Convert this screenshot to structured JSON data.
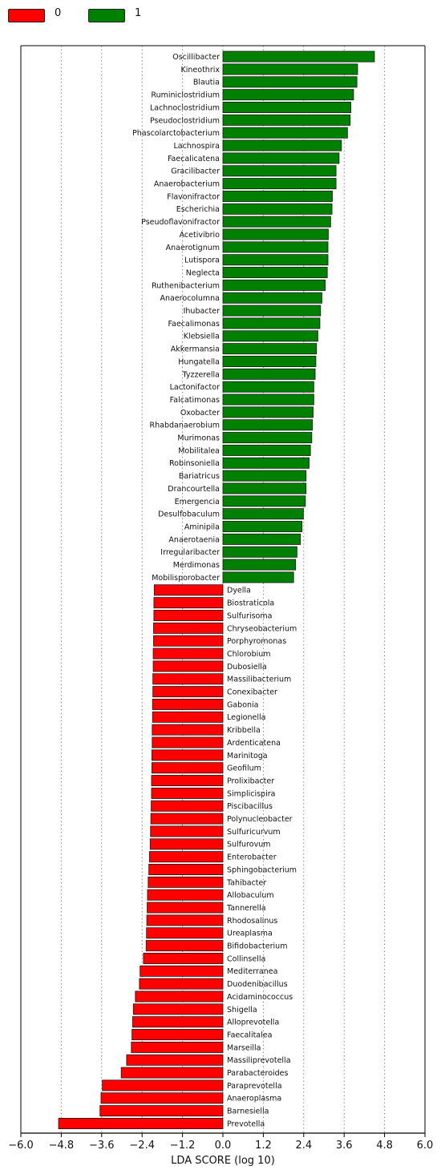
{
  "legend": [
    {
      "label": "0",
      "color": "#ff0000"
    },
    {
      "label": "1",
      "color": "#008000"
    }
  ],
  "chart_data": {
    "type": "bar",
    "orientation": "horizontal",
    "title": "",
    "xlabel": "LDA SCORE (log 10)",
    "ylabel": "",
    "xlim": [
      -6.0,
      6.0
    ],
    "xticks": [
      -6.0,
      -4.8,
      -3.6,
      -2.4,
      -1.2,
      0.0,
      1.2,
      2.4,
      3.6,
      4.8,
      6.0
    ],
    "xtick_labels": [
      "−6.0",
      "−4.8",
      "−3.6",
      "−2.4",
      "−1.2",
      "0.0",
      "1.2",
      "2.4",
      "3.6",
      "4.8",
      "6.0"
    ],
    "grid": "vertical-dotted",
    "legend_position": "top-left",
    "series": [
      {
        "name": "1",
        "color": "#008000",
        "categories": [
          "Oscillibacter",
          "Kineothrix",
          "Blautia",
          "Ruminiclostridium",
          "Lachnoclostridium",
          "Pseudoclostridium",
          "Phascolarctobacterium",
          "Lachnospira",
          "Faecalicatena",
          "Gracilibacter",
          "Anaerobacterium",
          "Flavonifractor",
          "Escherichia",
          "Pseudoflavonifractor",
          "Acetivibrio",
          "Anaerotignum",
          "Lutispora",
          "Neglecta",
          "Ruthenibacterium",
          "Anaerocolumna",
          "Ihubacter",
          "Faecalimonas",
          "Klebsiella",
          "Akkermansia",
          "Hungatella",
          "Tyzzerella",
          "Lactonifactor",
          "Falcatimonas",
          "Oxobacter",
          "Rhabdanaerobium",
          "Murimonas",
          "Mobilitalea",
          "Robinsoniella",
          "Bariatricus",
          "Drancourtella",
          "Emergencia",
          "Desulfobaculum",
          "Aminipila",
          "Anaerotaenia",
          "Irregularibacter",
          "Merdimonas",
          "Mobilisporobacter"
        ],
        "values": [
          4.5,
          4.0,
          3.98,
          3.88,
          3.8,
          3.78,
          3.7,
          3.52,
          3.45,
          3.36,
          3.36,
          3.25,
          3.24,
          3.2,
          3.13,
          3.12,
          3.12,
          3.1,
          3.04,
          2.94,
          2.9,
          2.88,
          2.82,
          2.78,
          2.76,
          2.74,
          2.7,
          2.7,
          2.68,
          2.66,
          2.64,
          2.6,
          2.56,
          2.47,
          2.47,
          2.45,
          2.39,
          2.35,
          2.3,
          2.2,
          2.16,
          2.1
        ]
      },
      {
        "name": "0",
        "color": "#ff0000",
        "categories": [
          "Dyella",
          "Biostraticola",
          "Sulfurisoma",
          "Chryseobacterium",
          "Porphyromonas",
          "Chlorobium",
          "Dubosiella",
          "Massilibacterium",
          "Conexibacter",
          "Gabonia",
          "Legionella",
          "Kribbella",
          "Ardenticatena",
          "Marinitoga",
          "Geofilum",
          "Prolixibacter",
          "Simplicispira",
          "Piscibacillus",
          "Polynucleobacter",
          "Sulfuricurvum",
          "Sulfurovum",
          "Enterobacter",
          "Sphingobacterium",
          "Tahibacter",
          "Allobaculum",
          "Tannerella",
          "Rhodosalinus",
          "Ureaplasma",
          "Bifidobacterium",
          "Collinsella",
          "Mediterranea",
          "Duodenibacillus",
          "Acidaminococcus",
          "Shigella",
          "Alloprevotella",
          "Faecalitalea",
          "Marseilla",
          "Massiliprevotella",
          "Parabacteroides",
          "Paraprevotella",
          "Anaeroplasma",
          "Barnesiella",
          "Prevotella"
        ],
        "values": [
          -2.04,
          -2.05,
          -2.05,
          -2.06,
          -2.06,
          -2.07,
          -2.07,
          -2.08,
          -2.08,
          -2.09,
          -2.09,
          -2.1,
          -2.1,
          -2.11,
          -2.11,
          -2.12,
          -2.12,
          -2.13,
          -2.14,
          -2.15,
          -2.16,
          -2.18,
          -2.2,
          -2.22,
          -2.24,
          -2.25,
          -2.26,
          -2.27,
          -2.28,
          -2.36,
          -2.46,
          -2.48,
          -2.6,
          -2.66,
          -2.68,
          -2.7,
          -2.72,
          -2.86,
          -3.02,
          -3.58,
          -3.62,
          -3.65,
          -4.88
        ]
      }
    ]
  }
}
